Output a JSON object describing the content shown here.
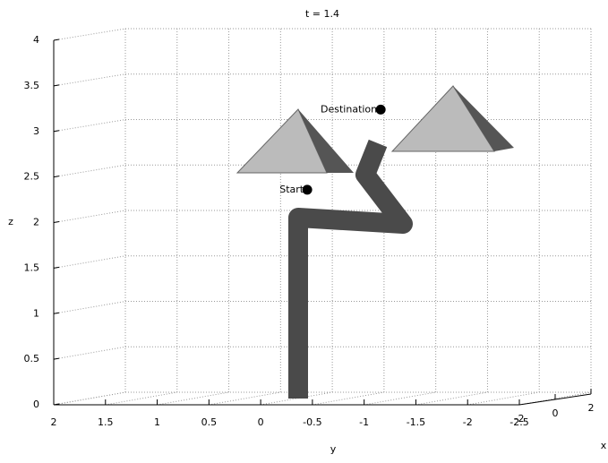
{
  "chart_data": {
    "type": "scatter3d",
    "title": "t = 1.4",
    "xlabel": "x",
    "ylabel": "y",
    "zlabel": "z",
    "xlim": [
      -2,
      2
    ],
    "xticks": [
      -2,
      0,
      2
    ],
    "ylim": [
      2,
      -2.5
    ],
    "yticks": [
      2,
      1.5,
      1,
      0.5,
      0,
      -0.5,
      -1,
      -1.5,
      -2,
      -2.5
    ],
    "zlim": [
      0,
      4
    ],
    "zticks": [
      0,
      0.5,
      1,
      1.5,
      2,
      2.5,
      3,
      3.5,
      4
    ],
    "grid": true,
    "points": [
      {
        "text": "Start",
        "y": -0.45,
        "z": 2.36,
        "color": "#000000"
      },
      {
        "text": "Destination",
        "y": -1.16,
        "z": 3.24,
        "color": "#000000"
      }
    ]
  }
}
